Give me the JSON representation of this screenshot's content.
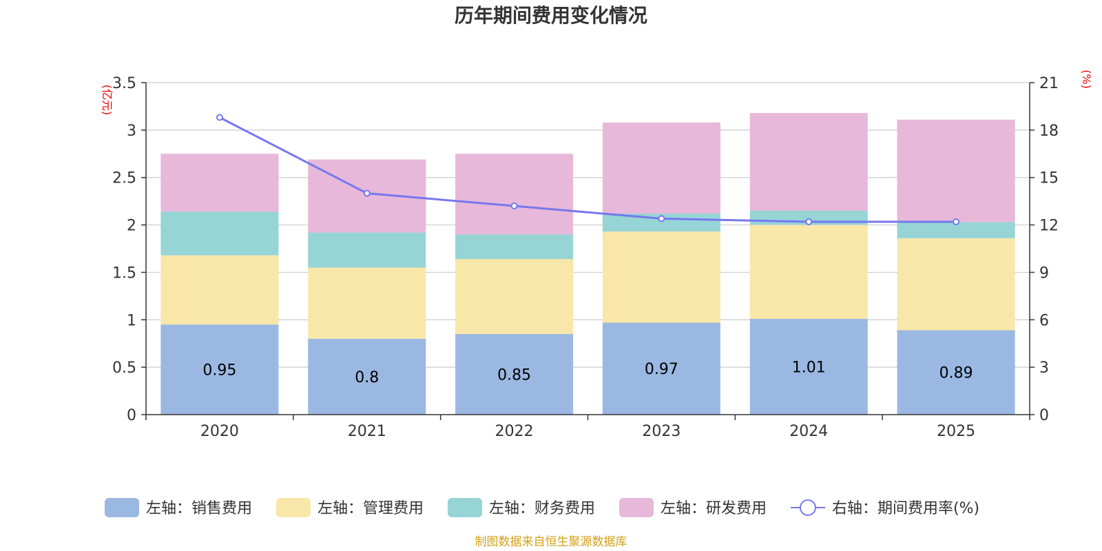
{
  "chart_data": {
    "type": "bar",
    "stacked": true,
    "title": "历年期间费用变化情况",
    "categories": [
      "2020",
      "2021",
      "2022",
      "2023",
      "2024",
      "2025"
    ],
    "left_axis": {
      "unit": "(亿元)",
      "min": 0,
      "max": 3.5,
      "ticks": [
        "0",
        "0.5",
        "1",
        "1.5",
        "2",
        "2.5",
        "3",
        "3.5"
      ]
    },
    "right_axis": {
      "unit": "(%)",
      "min": 0,
      "max": 21,
      "ticks": [
        "0",
        "3",
        "6",
        "9",
        "12",
        "15",
        "18",
        "21"
      ]
    },
    "series": [
      {
        "name": "左轴：销售费用",
        "color": "#9bb8e2",
        "values": [
          0.95,
          0.8,
          0.85,
          0.97,
          1.01,
          0.89
        ],
        "show_labels": true
      },
      {
        "name": "左轴：管理费用",
        "color": "#f8e7a8",
        "values": [
          0.73,
          0.75,
          0.79,
          0.96,
          0.99,
          0.97
        ],
        "show_labels": false
      },
      {
        "name": "左轴：财务费用",
        "color": "#96d4d5",
        "values": [
          0.46,
          0.37,
          0.26,
          0.19,
          0.15,
          0.17
        ],
        "show_labels": false
      },
      {
        "name": "左轴：研发费用",
        "color": "#e7b8d9",
        "values": [
          0.61,
          0.77,
          0.85,
          0.96,
          1.03,
          1.08
        ],
        "show_labels": false
      }
    ],
    "line_series": {
      "name": "右轴：期间费用率(%)",
      "color": "#7777ee",
      "values": [
        18.8,
        14.0,
        13.2,
        12.4,
        12.2,
        12.2
      ]
    },
    "grid": true,
    "legend_position": "bottom"
  },
  "source": {
    "text": "制图数据来自恒生聚源数据库",
    "color": "#d4a017"
  },
  "colors": {
    "axis_unit": "#ee0000",
    "grid": "#cccccc",
    "axis": "#333333"
  }
}
